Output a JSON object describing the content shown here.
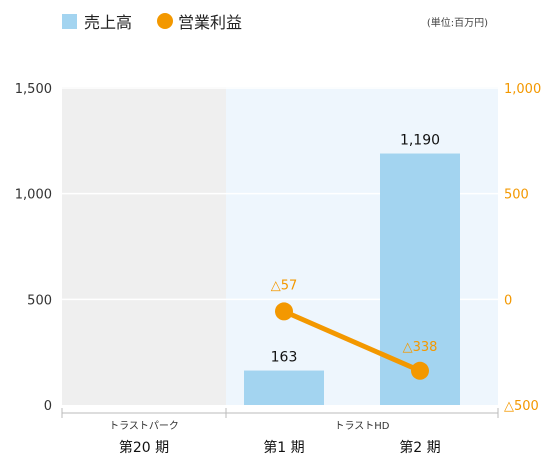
{
  "legend": {
    "sales_label": "売上高",
    "profit_label": "営業利益",
    "unit_note": "(単位:百万円)"
  },
  "colors": {
    "sales_bar": "#a3d4f0",
    "profit_line": "#f39800",
    "left_axis_text": "#333333",
    "right_axis_text": "#f39800",
    "panel_left_bg": "#efefef",
    "panel_right_bg": "#eef6fd"
  },
  "chart_data": {
    "type": "bar",
    "title": "",
    "categories": [
      "第20 期",
      "第1 期",
      "第2 期"
    ],
    "groups": [
      {
        "label": "トラストパーク",
        "categories": [
          "第20 期"
        ]
      },
      {
        "label": "トラストHD",
        "categories": [
          "第1 期",
          "第2 期"
        ]
      }
    ],
    "series": [
      {
        "name": "売上高",
        "type": "bar",
        "axis": "left",
        "values": [
          null,
          163,
          1190
        ],
        "labels": [
          "",
          "163",
          "1,190"
        ]
      },
      {
        "name": "営業利益",
        "type": "line",
        "axis": "right",
        "values": [
          null,
          -57,
          -338
        ],
        "labels": [
          "",
          "△57",
          "△338"
        ]
      }
    ],
    "left_axis": {
      "ylim": [
        0,
        1500
      ],
      "ticks": [
        0,
        500,
        1000,
        1500
      ],
      "tick_labels": [
        "0",
        "500",
        "1,000",
        "1,500"
      ]
    },
    "right_axis": {
      "ylim": [
        -500,
        1000
      ],
      "ticks": [
        -500,
        0,
        500,
        1000
      ],
      "tick_labels": [
        "△500",
        "0",
        "500",
        "1,000"
      ]
    },
    "grid": "horizontal",
    "legend_position": "top-left"
  }
}
